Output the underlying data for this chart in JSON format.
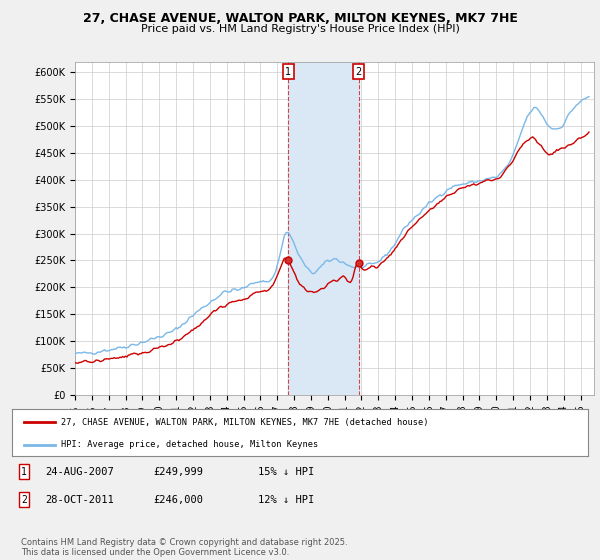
{
  "title": "27, CHASE AVENUE, WALTON PARK, MILTON KEYNES, MK7 7HE",
  "subtitle": "Price paid vs. HM Land Registry's House Price Index (HPI)",
  "ylabel_ticks": [
    "£0",
    "£50K",
    "£100K",
    "£150K",
    "£200K",
    "£250K",
    "£300K",
    "£350K",
    "£400K",
    "£450K",
    "£500K",
    "£550K",
    "£600K"
  ],
  "ytick_values": [
    0,
    50000,
    100000,
    150000,
    200000,
    250000,
    300000,
    350000,
    400000,
    450000,
    500000,
    550000,
    600000
  ],
  "ylim": [
    0,
    620000
  ],
  "xlim_start": 1995.0,
  "xlim_end": 2025.8,
  "background_color": "#f0f0f0",
  "plot_bg_color": "#ffffff",
  "hpi_color": "#7ab8e8",
  "price_color": "#cc0000",
  "marker1_date": 2007.65,
  "marker2_date": 2011.83,
  "marker1_price": 249999,
  "marker2_price": 246000,
  "shade_color": "#dae8f5",
  "legend_line1": "27, CHASE AVENUE, WALTON PARK, MILTON KEYNES, MK7 7HE (detached house)",
  "legend_line2": "HPI: Average price, detached house, Milton Keynes",
  "footer": "Contains HM Land Registry data © Crown copyright and database right 2025.\nThis data is licensed under the Open Government Licence v3.0."
}
